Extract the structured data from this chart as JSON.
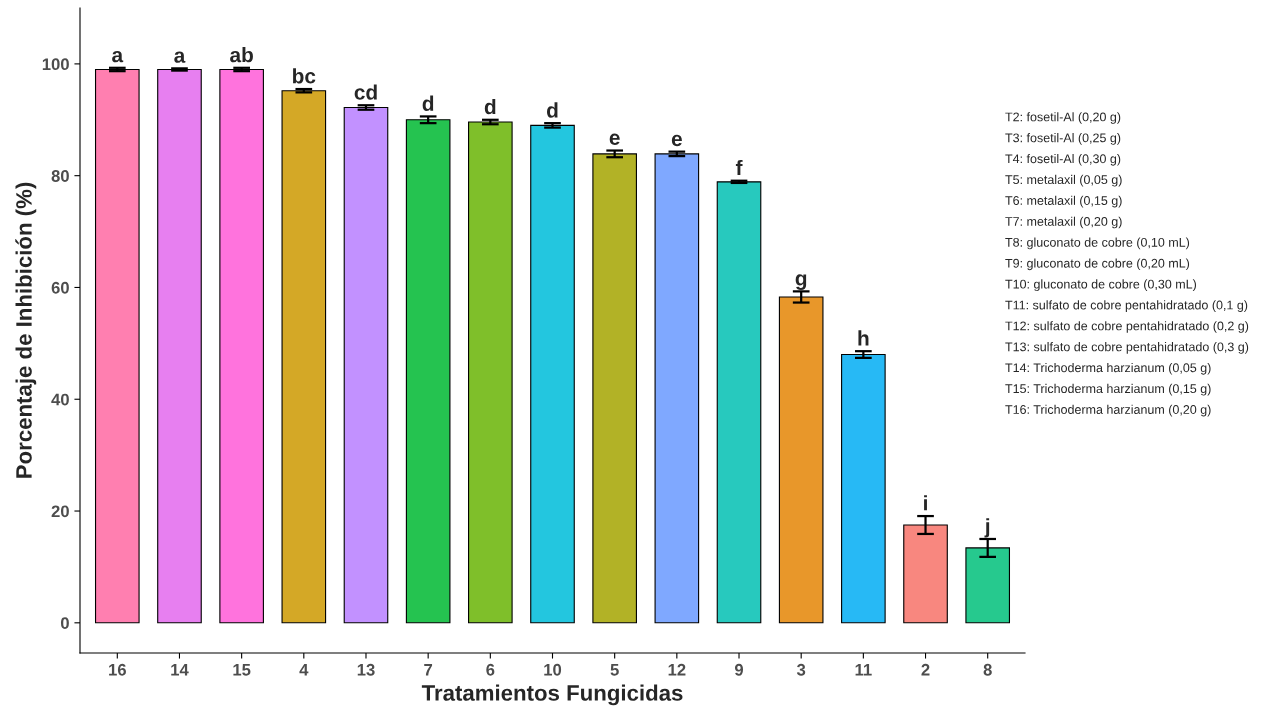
{
  "chart_data": {
    "type": "bar",
    "xlabel": "Tratamientos Fungicidas",
    "ylabel": "Porcentaje de Inhibición (%)",
    "categories": [
      "16",
      "14",
      "15",
      "4",
      "13",
      "7",
      "6",
      "10",
      "5",
      "12",
      "9",
      "3",
      "11",
      "2",
      "8"
    ],
    "values": [
      99.0,
      99.0,
      99.0,
      95.2,
      92.2,
      90.0,
      89.6,
      89.0,
      83.9,
      83.9,
      78.9,
      58.3,
      48.0,
      17.5,
      13.4
    ],
    "errors": [
      0.3,
      0.2,
      0.3,
      0.3,
      0.4,
      0.6,
      0.4,
      0.4,
      0.6,
      0.4,
      0.2,
      1.0,
      0.6,
      1.6,
      1.6
    ],
    "colors": [
      "#ff7fb0",
      "#e77ff0",
      "#ff73dd",
      "#d4a826",
      "#c291ff",
      "#25c350",
      "#7fbf2a",
      "#23c6df",
      "#b2b226",
      "#7fa8ff",
      "#27c9be",
      "#e8972a",
      "#27b9f5",
      "#f8877f",
      "#26c98e"
    ],
    "ylim": [
      -5.4,
      110
    ],
    "yticks": [
      0,
      20,
      40,
      60,
      80,
      100
    ],
    "grid": false,
    "annotations": [
      {
        "text": "a",
        "x": "16",
        "y": 99.3
      },
      {
        "text": "a",
        "x": "14",
        "y": 99.2
      },
      {
        "text": "ab",
        "x": "15",
        "y": 99.3
      },
      {
        "text": "bc",
        "x": "4",
        "y": 95.5
      },
      {
        "text": "cd",
        "x": "13",
        "y": 92.6
      },
      {
        "text": "d",
        "x": "7",
        "y": 90.6
      },
      {
        "text": "d",
        "x": "6",
        "y": 90.0
      },
      {
        "text": "d",
        "x": "10",
        "y": 89.4
      },
      {
        "text": "e",
        "x": "5",
        "y": 84.5
      },
      {
        "text": "e",
        "x": "12",
        "y": 84.3
      },
      {
        "text": "f",
        "x": "9",
        "y": 79.1
      },
      {
        "text": "g",
        "x": "3",
        "y": 59.3
      },
      {
        "text": "h",
        "x": "11",
        "y": 48.6
      },
      {
        "text": "i",
        "x": "2",
        "y": 19.1
      },
      {
        "text": "j",
        "x": "8",
        "y": 15.0
      },
      "T2: fosetil-Al (0,20 g)",
      "T3: fosetil-Al (0,25 g)",
      "T4: fosetil-Al (0,30 g)",
      "T5: metalaxil (0,05 g)",
      "T6: metalaxil (0,15 g)",
      "T7: metalaxil (0,20 g)",
      "T8: gluconato de cobre (0,10 mL)",
      "T9: gluconato de cobre (0,20 mL)",
      "T10: gluconato de cobre (0,30 mL)",
      "T11: sulfato de cobre pentahidratado (0,1 g)",
      "T12: sulfato de cobre pentahidratado (0,2 g)",
      "T13: sulfato de cobre pentahidratado (0,3 g)",
      "T14: Trichoderma harzianum (0,05 g)",
      "T15: Trichoderma harzianum (0,15 g)",
      "T16: Trichoderma harzianum (0,20 g)"
    ]
  }
}
